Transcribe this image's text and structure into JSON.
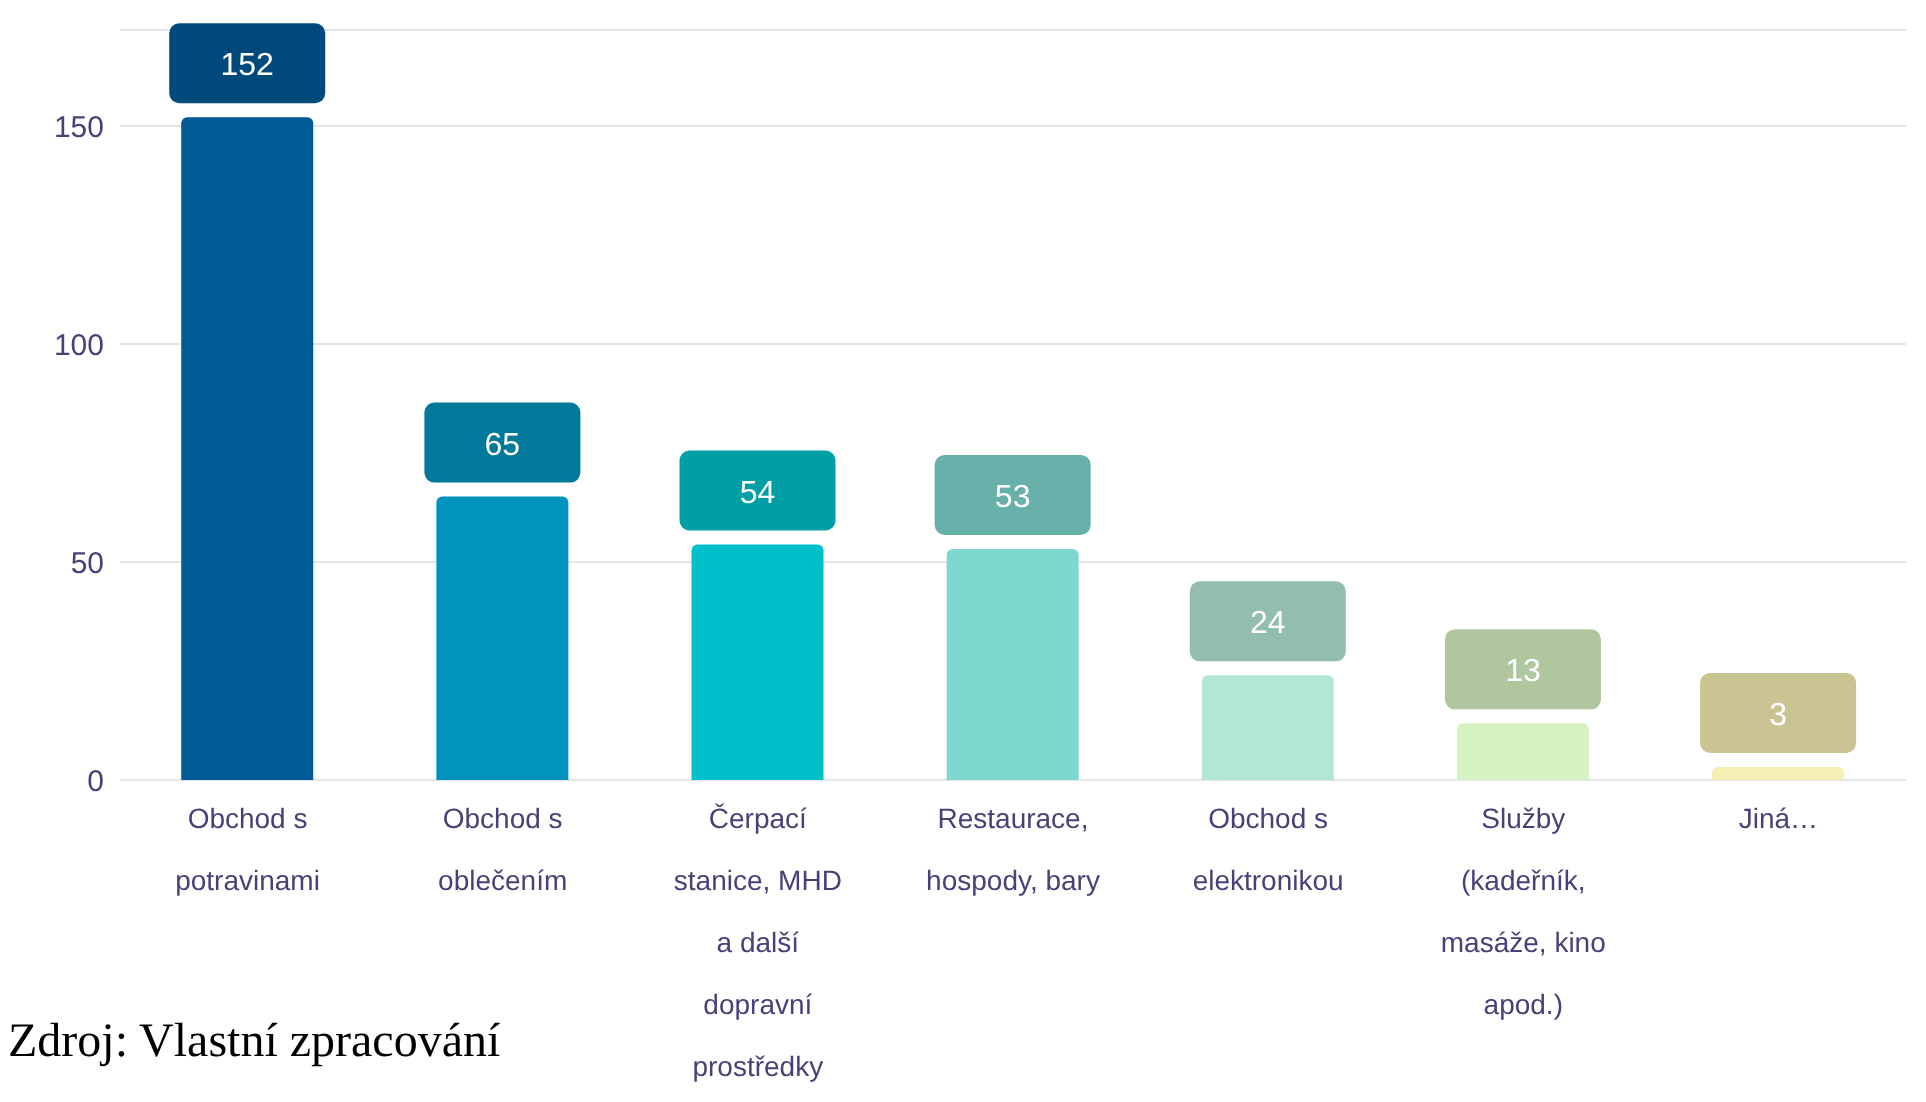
{
  "chart_data": {
    "type": "bar",
    "categories": [
      "Obchod s potravinami",
      "Obchod s oblečením",
      "Čerpací stanice, MHD a další dopravní prostředky",
      "Restaurace, hospody, bary",
      "Obchod s elektronikou",
      "Služby (kadeřník, masáže, kino apod.)",
      "Jiná…"
    ],
    "values": [
      152,
      65,
      54,
      53,
      24,
      13,
      3
    ],
    "colors": [
      "#005a96",
      "#0093bd",
      "#00c1c9",
      "#7dd8cf",
      "#b2e6d6",
      "#d6f1c2",
      "#f6efb3"
    ],
    "ylim": [
      0,
      172
    ],
    "yticks": [
      0,
      50,
      100,
      150
    ],
    "grid": "y",
    "data_labels": true,
    "annotations": [
      "Zdroj: Vlastní zpracování"
    ]
  }
}
